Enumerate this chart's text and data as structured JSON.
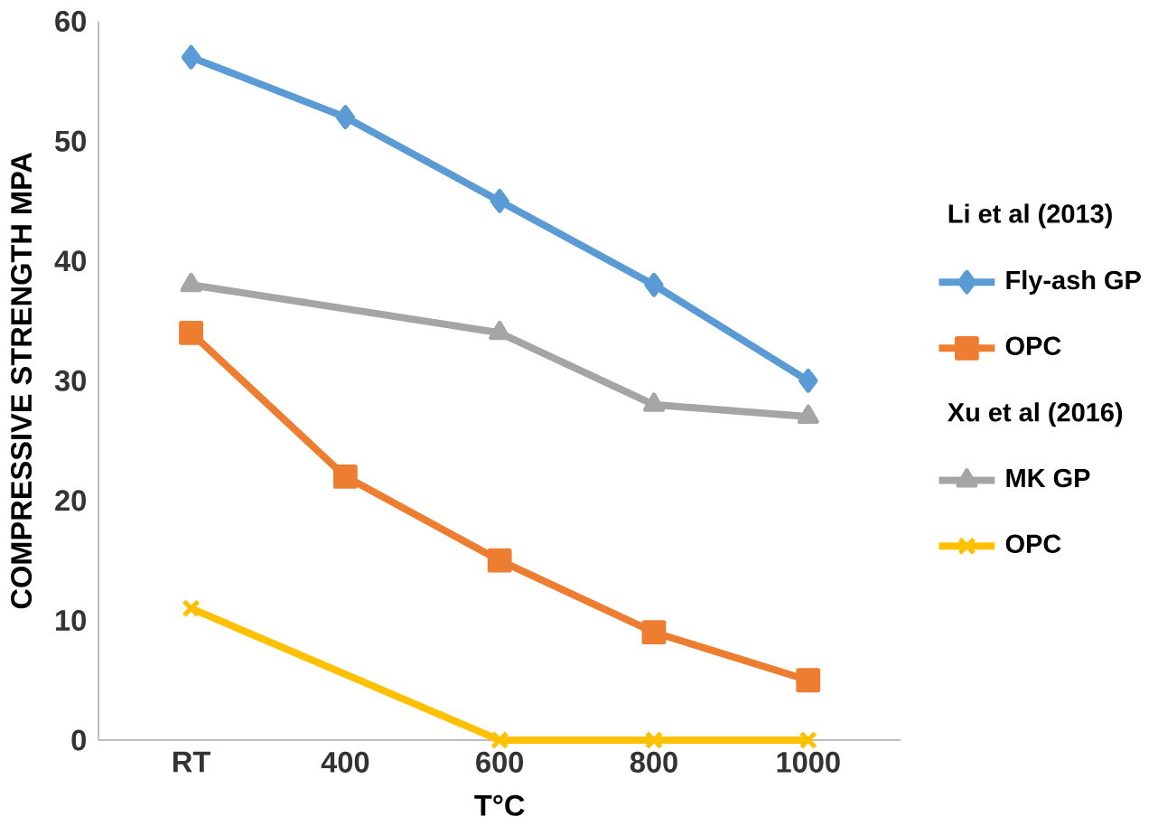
{
  "chart_data": {
    "type": "line",
    "xlabel": "T°C",
    "ylabel": "COMPRESSIVE STRENGTH MPA",
    "categories": [
      "RT",
      "400",
      "600",
      "800",
      "1000"
    ],
    "ylim": [
      0,
      60
    ],
    "yticks": [
      0,
      10,
      20,
      30,
      40,
      50,
      60
    ],
    "grid": false,
    "legend": "right",
    "line_style": "solid",
    "annotations": [
      "Li et al (2013)",
      "Xu et al (2016)"
    ],
    "series": [
      {
        "name": "Fly-ash GP",
        "color": "#5b9bd5",
        "marker": "diamond",
        "values": [
          57,
          52,
          45,
          38,
          30
        ]
      },
      {
        "name": "OPC",
        "color": "#ed7d31",
        "marker": "square",
        "values": [
          34,
          22,
          15,
          9,
          5
        ]
      },
      {
        "name": "MK GP",
        "color": "#a5a5a5",
        "marker": "triangle",
        "values": [
          38,
          null,
          34,
          28,
          27
        ]
      },
      {
        "name": "OPC",
        "color": "#ffc000",
        "marker": "cross",
        "values": [
          11,
          null,
          0,
          0,
          0
        ]
      }
    ]
  }
}
